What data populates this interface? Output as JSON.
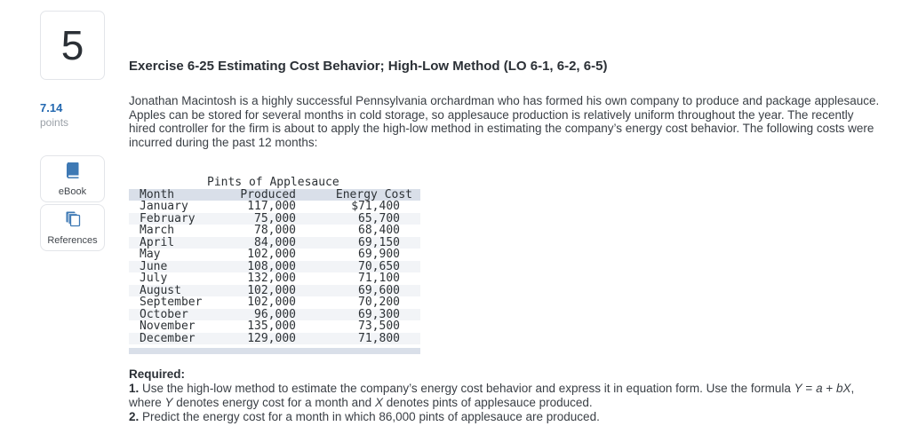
{
  "sidebar": {
    "question_number": "5",
    "points_value": "7.14",
    "points_label": "points",
    "ebook_label": "eBook",
    "references_label": "References"
  },
  "exercise": {
    "title": "Exercise 6-25 Estimating Cost Behavior; High-Low Method (LO 6-1, 6-2, 6-5)",
    "intro": "Jonathan Macintosh is a highly successful Pennsylvania orchardman who has formed his own company to produce and package applesauce. Apples can be stored for several months in cold storage, so applesauce production is relatively uniform throughout the year. The recently hired controller for the firm is about to apply the high-low method in estimating the company’s energy cost behavior. The following costs were incurred during the past 12 months:"
  },
  "cost_table": {
    "caption": "Pints of Applesauce",
    "columns": [
      "Month",
      "Produced",
      "Energy Cost"
    ],
    "rows": [
      [
        "January",
        "117,000",
        "$71,400"
      ],
      [
        "February",
        "75,000",
        "65,700"
      ],
      [
        "March",
        "78,000",
        "68,400"
      ],
      [
        "April",
        "84,000",
        "69,150"
      ],
      [
        "May",
        "102,000",
        "69,900"
      ],
      [
        "June",
        "108,000",
        "70,650"
      ],
      [
        "July",
        "132,000",
        "71,100"
      ],
      [
        "August",
        "102,000",
        "69,600"
      ],
      [
        "September",
        "102,000",
        "70,200"
      ],
      [
        "October",
        "96,000",
        "69,300"
      ],
      [
        "November",
        "135,000",
        "73,500"
      ],
      [
        "December",
        "129,000",
        "71,800"
      ]
    ]
  },
  "required": {
    "heading": "Required:",
    "items": [
      {
        "segments": [
          {
            "t": "1.",
            "s": "b"
          },
          {
            "t": " Use the high-low method to estimate the company’s energy cost behavior and express it in equation form. Use the formula ",
            "s": ""
          },
          {
            "t": "Y",
            "s": "i"
          },
          {
            "t": " = ",
            "s": ""
          },
          {
            "t": "a",
            "s": "i"
          },
          {
            "t": " + ",
            "s": ""
          },
          {
            "t": "bX",
            "s": "i"
          },
          {
            "t": ", where ",
            "s": ""
          },
          {
            "t": "Y",
            "s": "i"
          },
          {
            "t": " denotes energy cost for a month and ",
            "s": ""
          },
          {
            "t": "X",
            "s": "i"
          },
          {
            "t": " denotes pints of applesauce produced.",
            "s": ""
          }
        ]
      },
      {
        "segments": [
          {
            "t": "2.",
            "s": "b"
          },
          {
            "t": " Predict the energy cost for a month in which 86,000 pints of applesauce are produced.",
            "s": ""
          }
        ]
      }
    ]
  },
  "colors": {
    "accent_blue": "#3e79b4",
    "points_blue": "#2368b0",
    "table_band": "#d9dfe9",
    "table_zebra": "#f2f4f7"
  }
}
